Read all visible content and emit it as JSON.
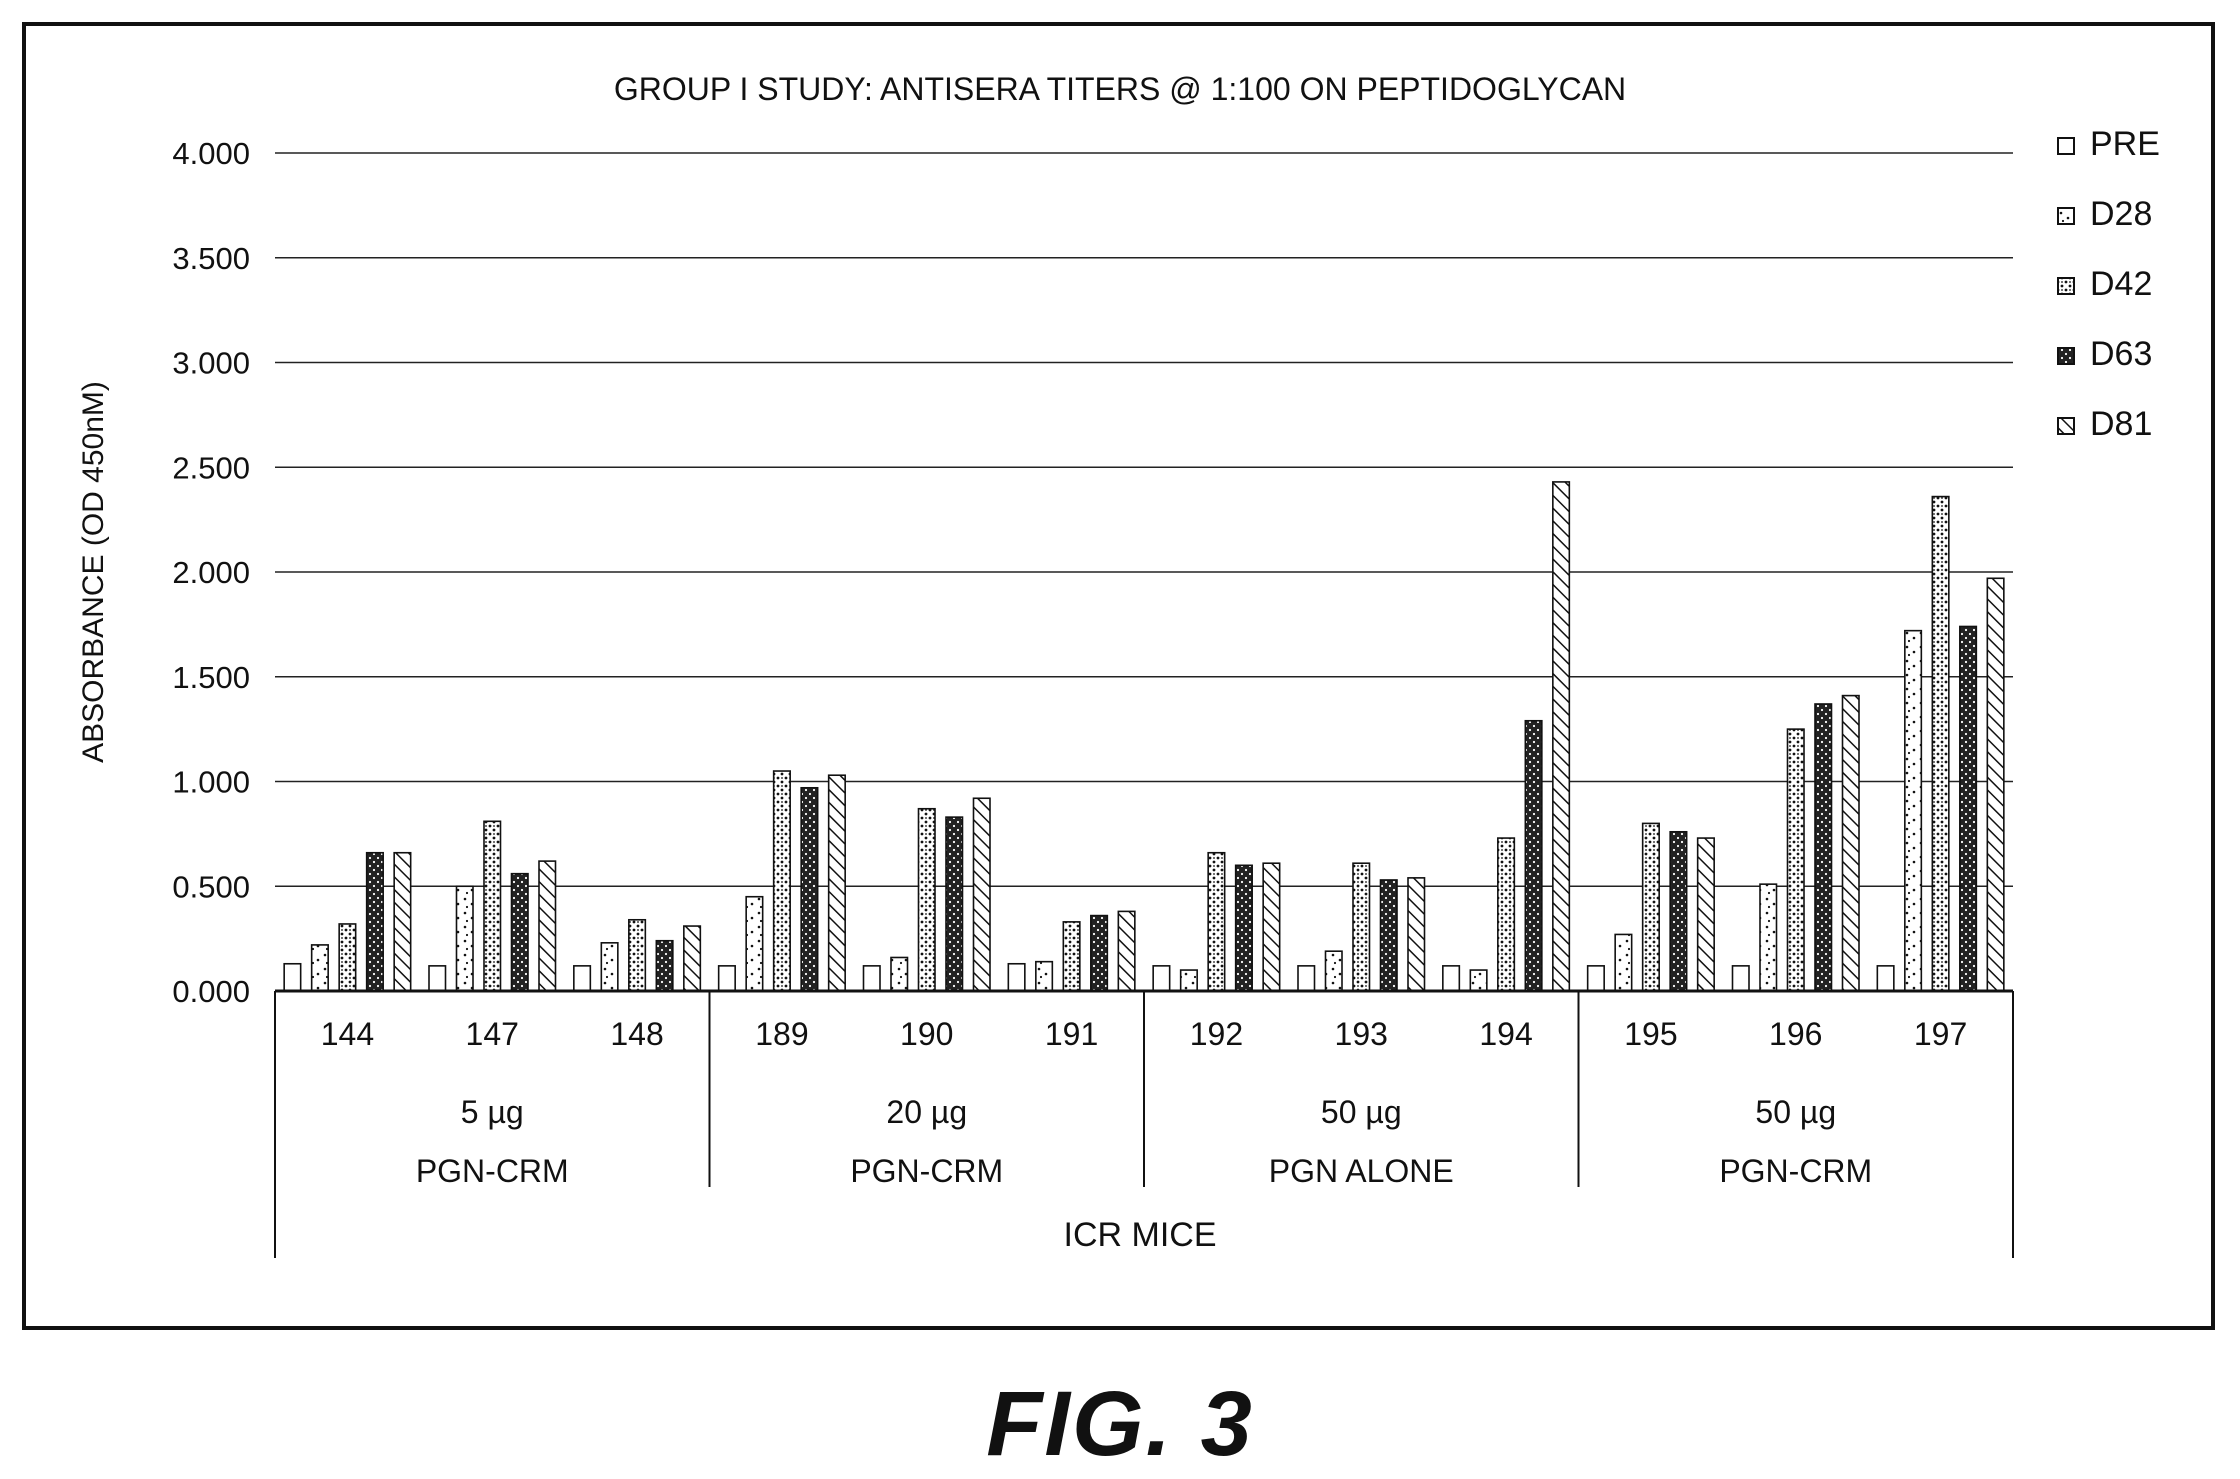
{
  "figure_caption": "FIG. 3",
  "chart_data": {
    "type": "bar",
    "title": "GROUP I STUDY: ANTISERA TITERS @ 1:100 ON PEPTIDOGLYCAN",
    "ylabel": "ABSORBANCE (OD 450nM)",
    "xlabel": "ICR MICE",
    "ylim": [
      0,
      4
    ],
    "yticks": [
      "0.000",
      "0.500",
      "1.000",
      "1.500",
      "2.000",
      "2.500",
      "3.000",
      "3.500",
      "4.000"
    ],
    "grid": true,
    "legend_position": "right",
    "categories": [
      "144",
      "147",
      "148",
      "189",
      "190",
      "191",
      "192",
      "193",
      "194",
      "195",
      "196",
      "197"
    ],
    "groups": [
      {
        "dose": "5 µg",
        "label": "PGN-CRM",
        "categories": [
          "144",
          "147",
          "148"
        ]
      },
      {
        "dose": "20 µg",
        "label": "PGN-CRM",
        "categories": [
          "189",
          "190",
          "191"
        ]
      },
      {
        "dose": "50 µg",
        "label": "PGN ALONE",
        "categories": [
          "192",
          "193",
          "194"
        ]
      },
      {
        "dose": "50 µg",
        "label": "PGN-CRM",
        "categories": [
          "195",
          "196",
          "197"
        ]
      }
    ],
    "series": [
      {
        "name": "PRE",
        "pattern": "blank",
        "values": [
          0.13,
          0.12,
          0.12,
          0.12,
          0.12,
          0.13,
          0.12,
          0.12,
          0.12,
          0.12,
          0.12,
          0.12
        ]
      },
      {
        "name": "D28",
        "pattern": "sparse",
        "values": [
          0.22,
          0.5,
          0.23,
          0.45,
          0.16,
          0.14,
          0.1,
          0.19,
          0.1,
          0.27,
          0.51,
          1.72
        ]
      },
      {
        "name": "D42",
        "pattern": "dense",
        "values": [
          0.32,
          0.81,
          0.34,
          1.05,
          0.87,
          0.33,
          0.66,
          0.61,
          0.73,
          0.8,
          1.25,
          2.36
        ]
      },
      {
        "name": "D63",
        "pattern": "dark",
        "values": [
          0.66,
          0.56,
          0.24,
          0.97,
          0.83,
          0.36,
          0.6,
          0.53,
          1.29,
          0.76,
          1.37,
          1.74
        ]
      },
      {
        "name": "D81",
        "pattern": "hatch",
        "values": [
          0.66,
          0.62,
          0.31,
          1.03,
          0.92,
          0.38,
          0.61,
          0.54,
          2.43,
          0.73,
          1.41,
          1.97
        ]
      }
    ]
  }
}
